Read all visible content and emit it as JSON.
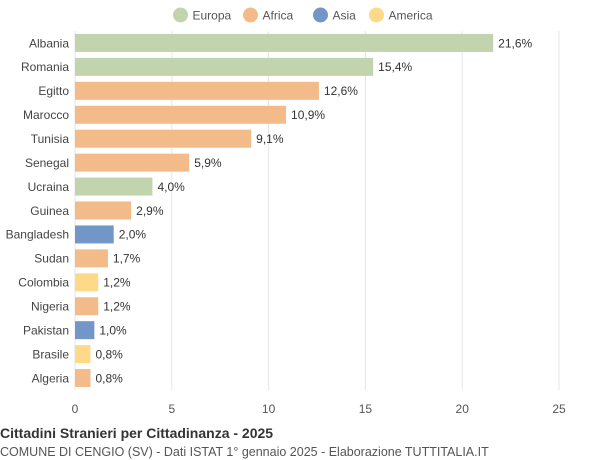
{
  "chart_data": {
    "type": "bar",
    "orientation": "horizontal",
    "title": "Cittadini Stranieri per Cittadinanza - 2025",
    "subtitle": "COMUNE DI CENGIO (SV) - Dati ISTAT 1° gennaio 2025 - Elaborazione TUTTITALIA.IT",
    "legend": [
      {
        "name": "Europa",
        "color": "#c2d4ad"
      },
      {
        "name": "Africa",
        "color": "#f2bb89"
      },
      {
        "name": "Asia",
        "color": "#7396c8"
      },
      {
        "name": "America",
        "color": "#fed98a"
      }
    ],
    "legend_position": "top",
    "xlim": [
      0,
      25
    ],
    "xticks": [
      "0",
      "5",
      "10",
      "15",
      "20",
      "25"
    ],
    "grid": true,
    "bars": [
      {
        "label": "Albania",
        "value": 21.6,
        "display": "21,6%",
        "group": "Europa"
      },
      {
        "label": "Romania",
        "value": 15.4,
        "display": "15,4%",
        "group": "Europa"
      },
      {
        "label": "Egitto",
        "value": 12.6,
        "display": "12,6%",
        "group": "Africa"
      },
      {
        "label": "Marocco",
        "value": 10.9,
        "display": "10,9%",
        "group": "Africa"
      },
      {
        "label": "Tunisia",
        "value": 9.1,
        "display": "9,1%",
        "group": "Africa"
      },
      {
        "label": "Senegal",
        "value": 5.9,
        "display": "5,9%",
        "group": "Africa"
      },
      {
        "label": "Ucraina",
        "value": 4.0,
        "display": "4,0%",
        "group": "Europa"
      },
      {
        "label": "Guinea",
        "value": 2.9,
        "display": "2,9%",
        "group": "Africa"
      },
      {
        "label": "Bangladesh",
        "value": 2.0,
        "display": "2,0%",
        "group": "Asia"
      },
      {
        "label": "Sudan",
        "value": 1.7,
        "display": "1,7%",
        "group": "Africa"
      },
      {
        "label": "Colombia",
        "value": 1.2,
        "display": "1,2%",
        "group": "America"
      },
      {
        "label": "Nigeria",
        "value": 1.2,
        "display": "1,2%",
        "group": "Africa"
      },
      {
        "label": "Pakistan",
        "value": 1.0,
        "display": "1,0%",
        "group": "Asia"
      },
      {
        "label": "Brasile",
        "value": 0.8,
        "display": "0,8%",
        "group": "America"
      },
      {
        "label": "Algeria",
        "value": 0.8,
        "display": "0,8%",
        "group": "Africa"
      }
    ]
  }
}
